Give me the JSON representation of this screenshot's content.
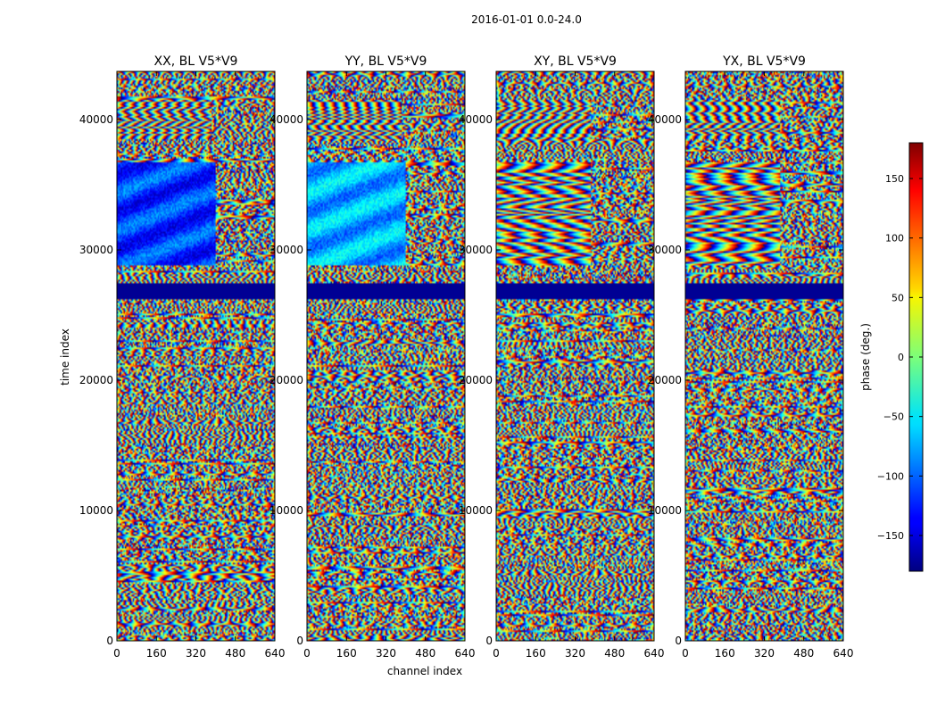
{
  "chart_data": {
    "type": "heatmap",
    "suptitle": "2016-01-01 0.0-24.0",
    "xlabel": "channel index",
    "ylabel": "time index",
    "xlim": [
      0,
      640
    ],
    "ylim": [
      0,
      43700
    ],
    "xticks": [
      0,
      160,
      320,
      480,
      640
    ],
    "xtick_labels": [
      "0",
      "160",
      "320",
      "480",
      "640"
    ],
    "yticks": [
      0,
      10000,
      20000,
      30000,
      40000
    ],
    "ytick_labels": [
      "0",
      "10000",
      "20000",
      "30000",
      "40000"
    ],
    "colormap": "jet",
    "colorbar": {
      "label": "phase (deg.)",
      "range": [
        -180,
        180
      ],
      "ticks": [
        -150,
        -100,
        -50,
        0,
        50,
        100,
        150
      ],
      "tick_labels": [
        "−150",
        "−100",
        "−50",
        "0",
        "50",
        "100",
        "150"
      ]
    },
    "panels": [
      {
        "title": "XX, BL V5*V9",
        "polarization": "XX"
      },
      {
        "title": "YY, BL V5*V9",
        "polarization": "YY"
      },
      {
        "title": "XY, BL V5*V9",
        "polarization": "XY"
      },
      {
        "title": "YX, BL V5*V9",
        "polarization": "YX"
      }
    ],
    "flagged_time_range": [
      26200,
      27500
    ]
  }
}
